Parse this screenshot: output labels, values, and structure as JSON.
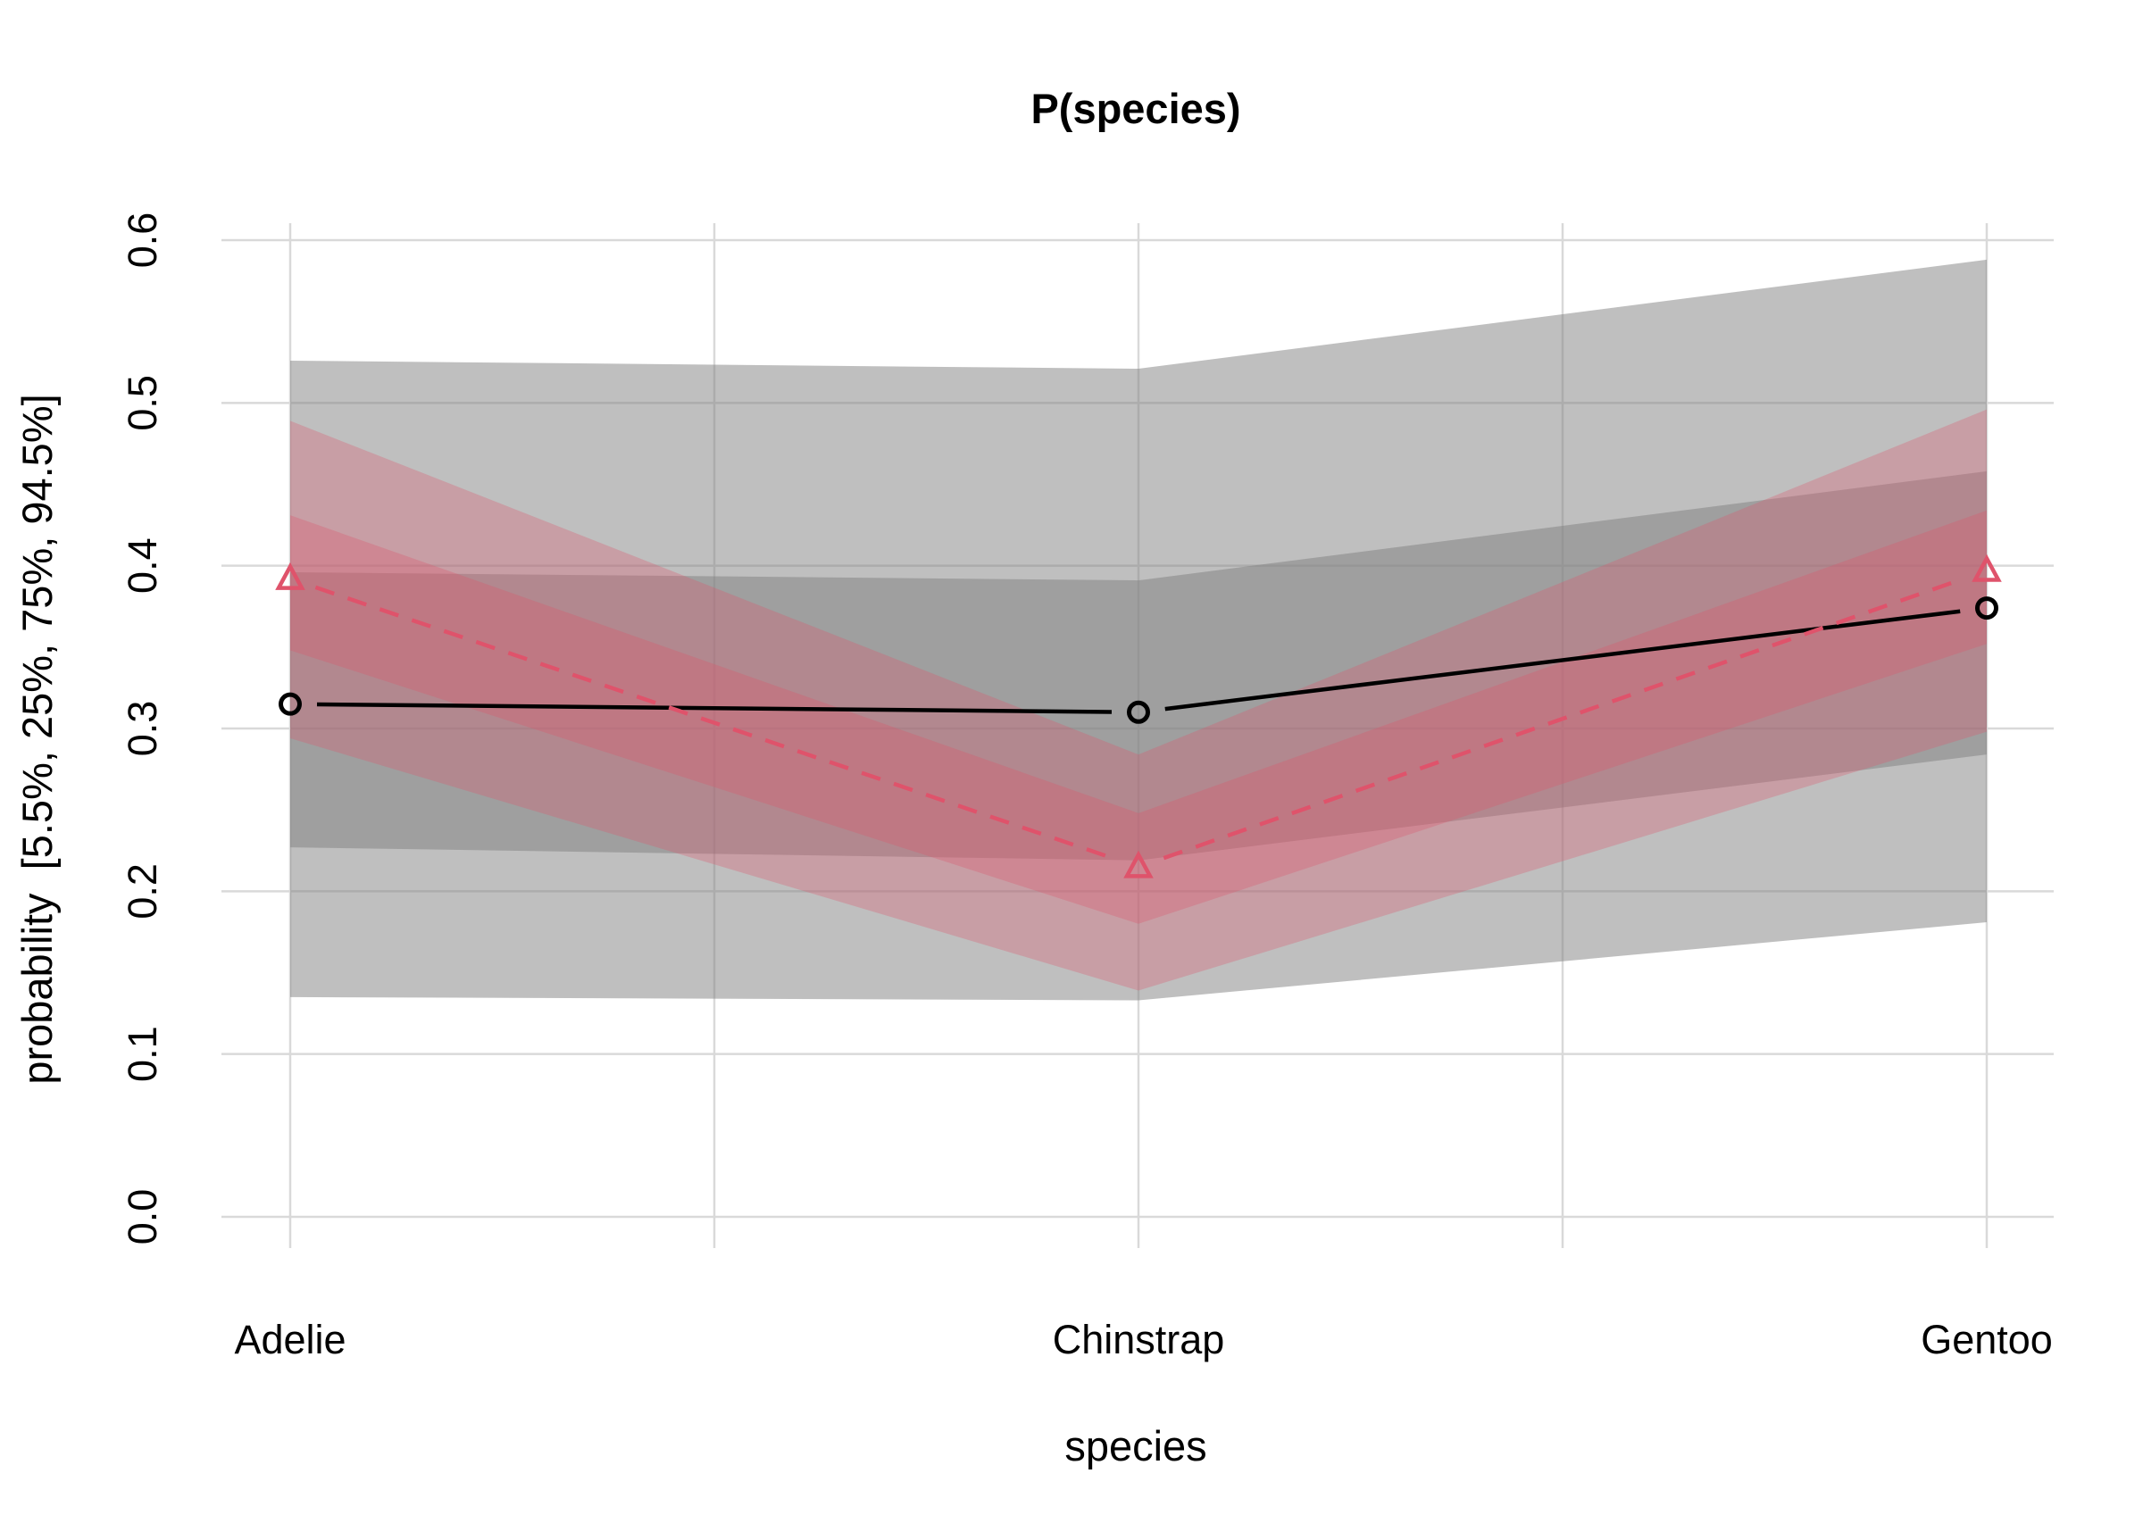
{
  "chart_data": {
    "type": "line",
    "title": "P(species)",
    "xlabel": "species",
    "ylabel": "probability  [5.5%, 25%, 75%, 94.5%]",
    "categories": [
      "Adelie",
      "Chinstrap",
      "Gentoo"
    ],
    "ylim": [
      0,
      0.6
    ],
    "yticks": [
      "0.0",
      "0.1",
      "0.2",
      "0.3",
      "0.4",
      "0.5",
      "0.6"
    ],
    "grid": true,
    "legend": "none",
    "series": [
      {
        "color": "#000000",
        "line": "solid",
        "marker": "circle",
        "values": [
          0.315,
          0.31,
          0.374
        ],
        "q055": [
          0.135,
          0.133,
          0.181
        ],
        "q25": [
          0.227,
          0.219,
          0.284
        ],
        "q75": [
          0.396,
          0.391,
          0.458
        ],
        "q945": [
          0.526,
          0.521,
          0.588
        ]
      },
      {
        "color": "#DF536B",
        "line": "dashed",
        "marker": "triangle",
        "values": [
          0.392,
          0.215,
          0.397
        ],
        "q055": [
          0.294,
          0.139,
          0.298
        ],
        "q25": [
          0.348,
          0.18,
          0.352
        ],
        "q75": [
          0.431,
          0.248,
          0.434
        ],
        "q945": [
          0.489,
          0.284,
          0.496
        ]
      }
    ]
  }
}
